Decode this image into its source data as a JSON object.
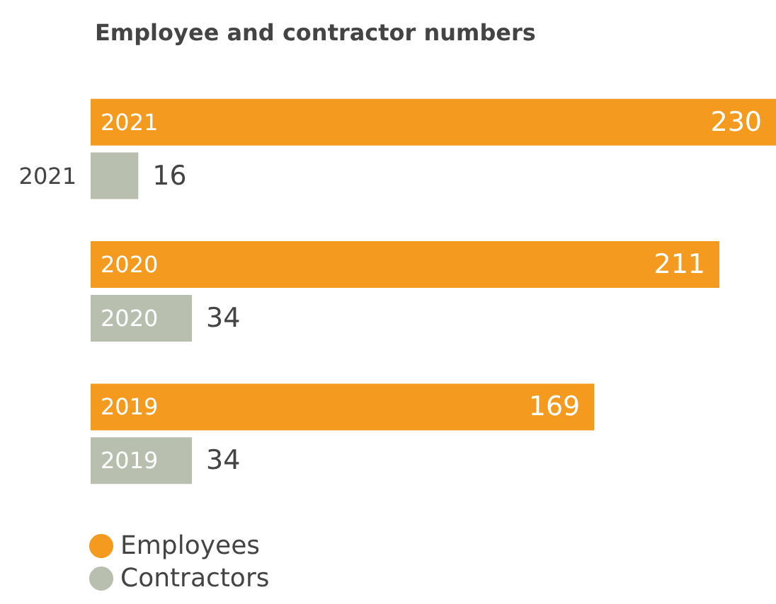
{
  "chart_data": {
    "type": "bar",
    "orientation": "horizontal",
    "title": "Employee and contractor numbers",
    "categories": [
      "2021",
      "2020",
      "2019"
    ],
    "series": [
      {
        "name": "Employees",
        "color": "#f39a1f",
        "values": [
          230,
          211,
          169
        ]
      },
      {
        "name": "Contractors",
        "color": "#b8bfae",
        "values": [
          16,
          34,
          34
        ]
      }
    ],
    "data_labels": true,
    "legend": "bottom left"
  }
}
